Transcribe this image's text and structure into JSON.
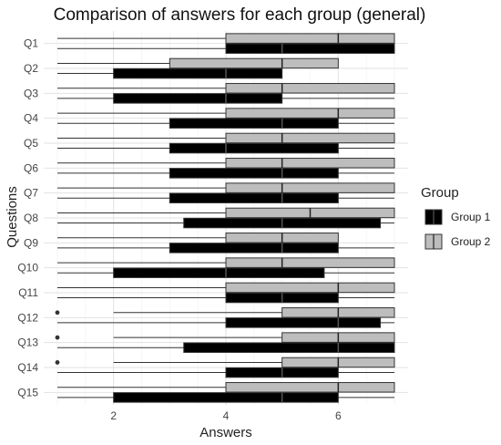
{
  "chart_data": {
    "type": "boxplot",
    "title": "Comparison of answers for each group (general)",
    "xlabel": "Answers",
    "ylabel": "Questions",
    "xlim": [
      1,
      7
    ],
    "xticks": [
      2,
      4,
      6
    ],
    "grid": true,
    "orientation": "horizontal",
    "categories": [
      "Q1",
      "Q2",
      "Q3",
      "Q4",
      "Q5",
      "Q6",
      "Q7",
      "Q8",
      "Q9",
      "Q10",
      "Q11",
      "Q12",
      "Q13",
      "Q14",
      "Q15"
    ],
    "legend": {
      "title": "Group",
      "position": "right"
    },
    "series": [
      {
        "name": "Group 1",
        "color": "#000000",
        "boxes": [
          {
            "min": 1,
            "q1": 4,
            "median": 5,
            "q3": 7,
            "max": 7,
            "outliers": []
          },
          {
            "min": 1,
            "q1": 2,
            "median": 4,
            "q3": 5,
            "max": 5,
            "outliers": []
          },
          {
            "min": 1,
            "q1": 2,
            "median": 4,
            "q3": 5,
            "max": 7,
            "outliers": []
          },
          {
            "min": 1,
            "q1": 3,
            "median": 5,
            "q3": 6,
            "max": 7,
            "outliers": []
          },
          {
            "min": 1,
            "q1": 3,
            "median": 4,
            "q3": 6,
            "max": 7,
            "outliers": []
          },
          {
            "min": 1,
            "q1": 3,
            "median": 5,
            "q3": 6,
            "max": 7,
            "outliers": []
          },
          {
            "min": 1,
            "q1": 3,
            "median": 5,
            "q3": 6,
            "max": 7,
            "outliers": []
          },
          {
            "min": 1,
            "q1": 3.25,
            "median": 5,
            "q3": 6.75,
            "max": 7,
            "outliers": []
          },
          {
            "min": 1,
            "q1": 3,
            "median": 5,
            "q3": 6,
            "max": 7,
            "outliers": []
          },
          {
            "min": 1,
            "q1": 2,
            "median": 4,
            "q3": 5.75,
            "max": 7,
            "outliers": []
          },
          {
            "min": 1,
            "q1": 4,
            "median": 5,
            "q3": 6,
            "max": 7,
            "outliers": []
          },
          {
            "min": 1,
            "q1": 4,
            "median": 6,
            "q3": 6.75,
            "max": 7,
            "outliers": []
          },
          {
            "min": 1,
            "q1": 3.25,
            "median": 6,
            "q3": 7,
            "max": 7,
            "outliers": []
          },
          {
            "min": 1,
            "q1": 4,
            "median": 5,
            "q3": 6,
            "max": 7,
            "outliers": []
          },
          {
            "min": 1,
            "q1": 2,
            "median": 5,
            "q3": 6,
            "max": 7,
            "outliers": []
          }
        ]
      },
      {
        "name": "Group 2",
        "color": "#bdbdbd",
        "boxes": [
          {
            "min": 1,
            "q1": 4,
            "median": 6,
            "q3": 7,
            "max": 7,
            "outliers": []
          },
          {
            "min": 1,
            "q1": 3,
            "median": 5,
            "q3": 6,
            "max": 6,
            "outliers": []
          },
          {
            "min": 1,
            "q1": 4,
            "median": 5,
            "q3": 7,
            "max": 7,
            "outliers": []
          },
          {
            "min": 1,
            "q1": 4,
            "median": 6,
            "q3": 7,
            "max": 7,
            "outliers": []
          },
          {
            "min": 1,
            "q1": 4,
            "median": 5,
            "q3": 7,
            "max": 7,
            "outliers": []
          },
          {
            "min": 1,
            "q1": 4,
            "median": 5,
            "q3": 7,
            "max": 7,
            "outliers": []
          },
          {
            "min": 1,
            "q1": 4,
            "median": 5,
            "q3": 7,
            "max": 7,
            "outliers": []
          },
          {
            "min": 1,
            "q1": 4,
            "median": 5.5,
            "q3": 7,
            "max": 7,
            "outliers": []
          },
          {
            "min": 1,
            "q1": 4,
            "median": 5,
            "q3": 6,
            "max": 6,
            "outliers": []
          },
          {
            "min": 1,
            "q1": 4,
            "median": 5,
            "q3": 7,
            "max": 7,
            "outliers": []
          },
          {
            "min": 1,
            "q1": 4,
            "median": 6,
            "q3": 7,
            "max": 7,
            "outliers": []
          },
          {
            "min": 2,
            "q1": 5,
            "median": 6,
            "q3": 7,
            "max": 7,
            "outliers": [
              1
            ]
          },
          {
            "min": 2,
            "q1": 5,
            "median": 6,
            "q3": 7,
            "max": 7,
            "outliers": [
              1
            ]
          },
          {
            "min": 2,
            "q1": 5,
            "median": 6,
            "q3": 7,
            "max": 7,
            "outliers": [
              1
            ]
          },
          {
            "min": 1,
            "q1": 4,
            "median": 6,
            "q3": 7,
            "max": 7,
            "outliers": []
          }
        ]
      }
    ]
  }
}
